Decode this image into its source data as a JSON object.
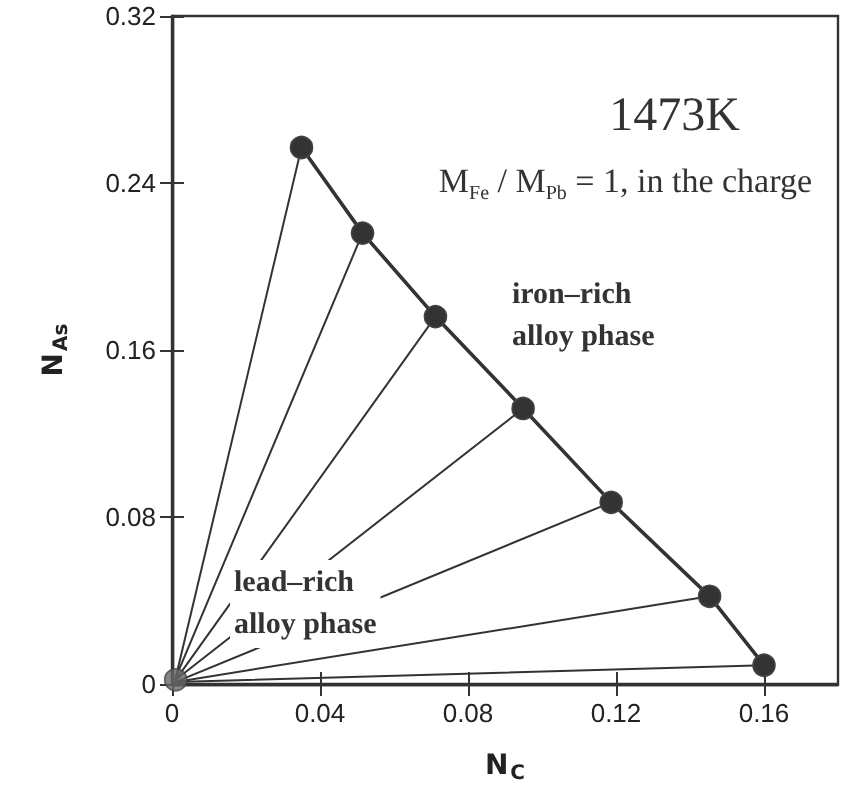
{
  "chart_data": {
    "type": "line",
    "xlabel": "N$_{C}$",
    "ylabel": "N$_{As}$",
    "xlim": [
      0,
      0.18
    ],
    "ylim": [
      0,
      0.32
    ],
    "xticks": [
      0,
      0.04,
      0.08,
      0.12,
      0.16
    ],
    "yticks": [
      0,
      0.08,
      0.16,
      0.24,
      0.32
    ],
    "grid": false,
    "series": [
      {
        "color": "#333333",
        "marker": "circle",
        "x": [
          0.035,
          0.0515,
          0.0712,
          0.0949,
          0.1187,
          0.1453,
          0.16
        ],
        "values": [
          0.257,
          0.216,
          0.176,
          0.132,
          0.087,
          0.042,
          0.009
        ]
      },
      {
        "type": "scatter",
        "color": "#666666",
        "marker": "circle",
        "x": [
          0.001
        ],
        "values": [
          0.002
        ]
      },
      {
        "type": "line",
        "color": "#333333",
        "marker": "none",
        "x": [
          0.001,
          0.035
        ],
        "values": [
          0.003,
          0.257
        ]
      },
      {
        "type": "line",
        "color": "#333333",
        "marker": "none",
        "x": [
          0.001,
          0.0515
        ],
        "values": [
          0.003,
          0.216
        ]
      },
      {
        "type": "line",
        "color": "#333333",
        "marker": "none",
        "x": [
          0.001,
          0.0712
        ],
        "values": [
          0.002,
          0.176
        ]
      },
      {
        "type": "line",
        "color": "#333333",
        "marker": "none",
        "x": [
          0.001,
          0.0949
        ],
        "values": [
          0.002,
          0.132
        ]
      },
      {
        "type": "line",
        "color": "#333333",
        "marker": "none",
        "x": [
          0.001,
          0.1187
        ],
        "values": [
          0.001,
          0.087
        ]
      },
      {
        "type": "line",
        "color": "#333333",
        "marker": "none",
        "x": [
          0.001,
          0.1453
        ],
        "values": [
          0.001,
          0.042
        ]
      },
      {
        "type": "line",
        "color": "#333333",
        "marker": "none",
        "x": [
          0.001,
          0.16
        ],
        "values": [
          0.001,
          0.009
        ]
      }
    ],
    "annotations": [
      "1473K",
      "M$_{Fe}$ / M$_{Pb}$ = 1, in the charge",
      "iron–rich\nalloy phase",
      "lead–rich\nalloy phase"
    ]
  }
}
